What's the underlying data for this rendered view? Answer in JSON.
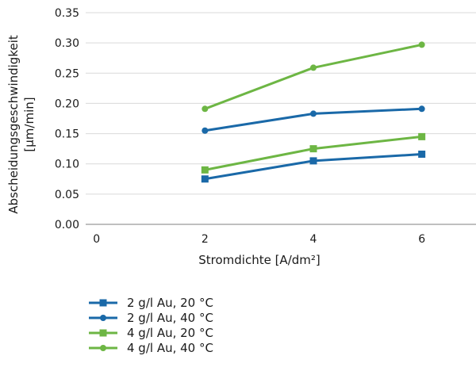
{
  "chart_data": {
    "type": "line",
    "xlabel": "Stromdichte [A/dm²]",
    "ylabel_line1": "Abscheidungsgeschwindigkeit",
    "ylabel_line2": "[µm/min]",
    "x_ticks": [
      "0",
      "2",
      "4",
      "6"
    ],
    "y_ticks": [
      "0.00",
      "0.05",
      "0.10",
      "0.15",
      "0.20",
      "0.25",
      "0.30",
      "0.35"
    ],
    "xlim": [
      -0.2,
      7.0
    ],
    "ylim": [
      0,
      0.35
    ],
    "grid": "horizontal",
    "legend_position": "bottom",
    "x": [
      2,
      4,
      6
    ],
    "series": [
      {
        "name": "2 g/l Au, 20 °C",
        "values": [
          0.075,
          0.105,
          0.116
        ],
        "color": "#1a69a8",
        "marker": "square"
      },
      {
        "name": "2 g/l Au, 40 °C",
        "values": [
          0.155,
          0.183,
          0.191
        ],
        "color": "#1a69a8",
        "marker": "circle"
      },
      {
        "name": "4 g/l Au, 20 °C",
        "values": [
          0.09,
          0.125,
          0.145
        ],
        "color": "#6db644",
        "marker": "square"
      },
      {
        "name": "4 g/l Au, 40 °C",
        "values": [
          0.191,
          0.259,
          0.297
        ],
        "color": "#6db644",
        "marker": "circle"
      }
    ]
  }
}
